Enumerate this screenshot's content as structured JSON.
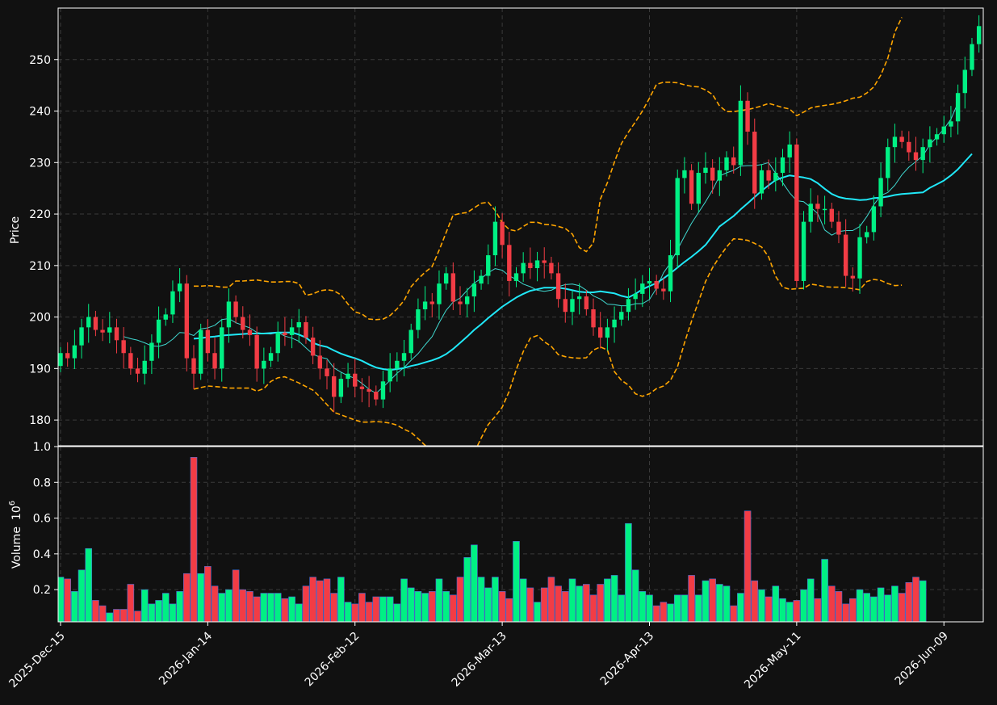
{
  "chart_data": {
    "type": "candlestick",
    "background": "#111111",
    "colors": {
      "up": "#00f084",
      "down": "#f23c45",
      "ma_fast": "#40d8d0",
      "ma_slow": "#20e8f8",
      "bollinger": "#ffa500",
      "grid": "#3a3a3a",
      "axis": "#ffffff",
      "volume_edge": "#4a6fd8"
    },
    "grid": true,
    "x_tick_labels": [
      "2025-Dec-15",
      "2026-Jan-14",
      "2026-Feb-12",
      "2026-Mar-13",
      "2026-Apr-13",
      "2026-May-11",
      "2026-Jun-09"
    ],
    "x_tick_index": [
      0,
      21,
      42,
      63,
      84,
      105,
      126
    ],
    "price_panel": {
      "ylabel": "Price",
      "ylim": [
        175,
        260
      ],
      "y_ticks": [
        180,
        190,
        200,
        210,
        220,
        230,
        240,
        250
      ],
      "close": [
        193,
        192,
        194.5,
        198,
        200,
        197.5,
        197,
        198,
        195.5,
        193,
        190,
        189,
        191.5,
        195,
        199.5,
        200.5,
        205,
        206.5,
        192,
        189,
        197.5,
        193,
        190,
        198,
        203,
        200,
        197.5,
        196.5,
        190,
        191.5,
        193,
        197,
        196.5,
        198,
        199,
        196,
        192.5,
        190,
        188.5,
        184.5,
        188,
        189,
        186.5,
        186,
        185.5,
        184,
        187.5,
        190,
        191.5,
        193,
        197.5,
        201.5,
        203,
        202.5,
        206.5,
        208.5,
        203,
        202.5,
        204,
        206.5,
        208,
        212,
        218.5,
        214,
        207,
        208.5,
        210.5,
        209.5,
        211,
        210.5,
        208.5,
        203.5,
        201,
        203.5,
        204,
        201.5,
        198,
        196,
        198,
        199.5,
        201,
        203.5,
        204.5,
        206.5,
        207,
        205.5,
        205,
        212,
        227,
        228.5,
        222,
        228,
        229,
        226.5,
        228.5,
        231,
        229.5,
        242,
        236,
        224,
        228.5,
        226.5,
        228,
        231,
        233.5,
        207,
        218.5,
        222,
        221,
        221,
        218.5,
        216,
        208,
        207.5,
        215.5,
        216.5,
        221.5,
        227,
        233,
        235,
        234,
        232,
        230.5,
        233,
        234.5,
        235.5,
        237,
        238,
        243.5,
        248,
        253,
        256.5
      ],
      "ma_fast": [
        null,
        null,
        null,
        null,
        null,
        null,
        null,
        null,
        null,
        196.2,
        195.8,
        195.5,
        195,
        194.4,
        194.3,
        194.7,
        195.7,
        197,
        196.9,
        196.4,
        197.7,
        197.9,
        198.4,
        199.5,
        199.7,
        198.9,
        198.4,
        197.9,
        197,
        196.8,
        196.7,
        197,
        196.3,
        195.9,
        195.3,
        194,
        192.8,
        192.2,
        191.9,
        190.1,
        189.3,
        188.6,
        188.1,
        187.1,
        186,
        185.2,
        186.4,
        187.7,
        189.1,
        190.2,
        191.6,
        192.9,
        194.6,
        196.2,
        198.9,
        201.3,
        202.9,
        203.7,
        205.2,
        206.6,
        207.5,
        208.6,
        209.4,
        209.1,
        208,
        207.3,
        206.4,
        205.9,
        205.2,
        205,
        205.2,
        205.9,
        206.3,
        206.4,
        206.1,
        205.2,
        204.1,
        203.5,
        202.5,
        202.4,
        202.2,
        202.2,
        202.6,
        202.6,
        203.4,
        205.6,
        208.6,
        210.5,
        213.1,
        215.7,
        218.2,
        220.3,
        222.4,
        224.7,
        227.4,
        228,
        228.5,
        229.3,
        229.4,
        229.4,
        229.6,
        230,
        227.9,
        226.1,
        224.1,
        222.6,
        222.4,
        221.3,
        220.1,
        216.9,
        215.9,
        216.6,
        216.8,
        216.8,
        217.6,
        219.5,
        221.8,
        223.6,
        224.2,
        225.6,
        227.6,
        229.1,
        230.2,
        231.3,
        233.5,
        235,
        236.5,
        238.4,
        241.6
      ],
      "ma_slow": [
        null,
        null,
        null,
        null,
        null,
        null,
        null,
        null,
        null,
        null,
        null,
        null,
        null,
        null,
        null,
        null,
        null,
        null,
        null,
        195.8,
        195.9,
        196.1,
        196.2,
        196.4,
        196.5,
        196.6,
        196.7,
        196.8,
        196.8,
        196.8,
        196.9,
        197,
        197,
        197,
        196.6,
        196,
        195,
        194.5,
        194.2,
        193.5,
        192.9,
        192.4,
        192,
        191.5,
        190.8,
        190.2,
        189.9,
        189.7,
        189.9,
        190.1,
        190.5,
        190.8,
        191.2,
        191.6,
        192.1,
        192.8,
        193.8,
        195,
        196.2,
        197.5,
        198.6,
        199.8,
        200.9,
        202,
        202.9,
        203.8,
        204.5,
        205.1,
        205.4,
        205.7,
        205.7,
        205.7,
        205.5,
        205.2,
        204.9,
        204.8,
        204.8,
        205,
        204.8,
        204.6,
        204.1,
        203.8,
        204.5,
        205.4,
        206,
        206.6,
        207.5,
        208.5,
        209.6,
        210.7,
        211.7,
        212.8,
        214,
        215.8,
        217.6,
        218.6,
        219.6,
        220.9,
        222.1,
        223.3,
        224.5,
        225.6,
        226.6,
        227.1,
        227.5,
        227.3,
        227.1,
        226.8,
        226,
        224.9,
        223.9,
        223.3,
        223,
        222.9,
        222.7,
        222.8,
        223.1,
        223.2,
        223.4,
        223.7,
        223.9,
        224,
        224.1,
        224.2,
        225.1,
        225.8,
        226.5,
        227.5,
        228.7,
        230.2,
        231.7
      ],
      "bb_upper": [
        null,
        null,
        null,
        null,
        null,
        null,
        null,
        null,
        null,
        null,
        null,
        null,
        null,
        null,
        null,
        null,
        null,
        null,
        null,
        206,
        206,
        206.1,
        206,
        205.8,
        205.8,
        207,
        207,
        207.1,
        207.2,
        207,
        206.8,
        206.8,
        206.9,
        206.9,
        206.5,
        204.2,
        204.5,
        205.1,
        205.3,
        205.1,
        204.3,
        202.5,
        201,
        200.6,
        199.6,
        199.5,
        199.6,
        200.3,
        201.6,
        203.2,
        205.9,
        207.4,
        208.7,
        209.8,
        213,
        216.4,
        219.8,
        220.1,
        220.3,
        221.2,
        222.1,
        222.3,
        220.7,
        218.3,
        217,
        216.7,
        217.6,
        218.4,
        218.4,
        218,
        217.9,
        217.6,
        217.2,
        216.1,
        213.5,
        212.7,
        214.4,
        222.9,
        226.1,
        230.1,
        233.7,
        235.9,
        237.9,
        240,
        242.5,
        245.2,
        245.6,
        245.6,
        245.5,
        245.1,
        244.8,
        244.7,
        244.1,
        243.2,
        241,
        239.9,
        239.9,
        240.1,
        240.3,
        240.6,
        241,
        241.5,
        241.1,
        240.7,
        240.4,
        239.1,
        239.8,
        240.6,
        240.9,
        241.1,
        241.3,
        241.6,
        242,
        242.5,
        242.7,
        243.5,
        244.7,
        247,
        250.3,
        255.3,
        258.2
      ],
      "bb_lower": [
        null,
        null,
        null,
        null,
        null,
        null,
        null,
        null,
        null,
        null,
        null,
        null,
        null,
        null,
        null,
        null,
        null,
        null,
        null,
        186,
        186.3,
        186.6,
        186.5,
        186.4,
        186.2,
        186.2,
        186.2,
        186.2,
        185.6,
        186.1,
        187.5,
        188.2,
        188.4,
        187.8,
        187.2,
        186.5,
        185.8,
        184.5,
        183,
        181.5,
        181,
        180.5,
        180,
        179.6,
        179.6,
        179.7,
        179.6,
        179.4,
        179,
        178.2,
        177.6,
        176.4,
        175.1,
        174.2,
        173.6,
        173,
        172.5,
        172,
        171.3,
        173.7,
        176.5,
        179.1,
        180.7,
        182.5,
        185.6,
        189.8,
        193.3,
        195.9,
        196.4,
        195.2,
        194.3,
        192.7,
        192.3,
        192.1,
        192,
        192.1,
        193.6,
        194.2,
        193.6,
        189.4,
        187.7,
        186.8,
        185.1,
        184.6,
        185.1,
        186.1,
        186.6,
        187.7,
        190.3,
        195,
        199.2,
        203,
        206.9,
        209.6,
        211.7,
        213.6,
        215.2,
        215.1,
        214.9,
        214.3,
        213.6,
        211.7,
        207.9,
        205.8,
        205.4,
        205.5,
        205.6,
        206.4,
        206.2,
        205.9,
        205.8,
        205.8,
        205.7,
        205.5,
        205.3,
        206.9,
        207.3,
        207.1,
        206.5,
        206.1,
        206.2
      ]
    },
    "volume_panel": {
      "ylabel": "Volume",
      "unit_label": "10",
      "unit_exponent": "6",
      "ylim": [
        0.02,
        1.0
      ],
      "y_ticks": [
        0.2,
        0.4,
        0.6,
        0.8,
        1.0
      ],
      "y_tick_labels": [
        "0.2",
        "0.4",
        "0.6",
        "0.8",
        "1.0"
      ],
      "values": [
        0.27,
        0.26,
        0.19,
        0.31,
        0.43,
        0.14,
        0.11,
        0.07,
        0.09,
        0.09,
        0.23,
        0.08,
        0.2,
        0.12,
        0.14,
        0.18,
        0.12,
        0.19,
        0.29,
        0.94,
        0.29,
        0.33,
        0.22,
        0.18,
        0.2,
        0.31,
        0.2,
        0.19,
        0.16,
        0.18,
        0.18,
        0.18,
        0.15,
        0.16,
        0.12,
        0.22,
        0.27,
        0.25,
        0.26,
        0.18,
        0.27,
        0.13,
        0.12,
        0.18,
        0.13,
        0.16,
        0.16,
        0.16,
        0.12,
        0.26,
        0.21,
        0.19,
        0.18,
        0.19,
        0.26,
        0.19,
        0.17,
        0.27,
        0.38,
        0.45,
        0.27,
        0.21,
        0.27,
        0.19,
        0.15,
        0.47,
        0.26,
        0.21,
        0.13,
        0.21,
        0.27,
        0.22,
        0.19,
        0.26,
        0.22,
        0.23,
        0.17,
        0.23,
        0.26,
        0.28,
        0.17,
        0.57,
        0.31,
        0.19,
        0.17,
        0.11,
        0.13,
        0.12,
        0.17,
        0.17,
        0.28,
        0.17,
        0.25,
        0.26,
        0.23,
        0.22,
        0.11,
        0.18,
        0.64,
        0.25,
        0.2,
        0.16,
        0.22,
        0.15,
        0.13,
        0.14,
        0.2,
        0.26,
        0.15,
        0.37,
        0.22,
        0.19,
        0.12,
        0.15,
        0.2,
        0.18,
        0.16,
        0.21,
        0.17,
        0.22,
        0.18,
        0.24,
        0.27,
        0.25
      ]
    }
  }
}
